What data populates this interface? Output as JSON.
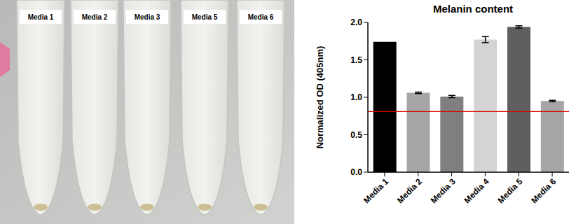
{
  "chart_data": {
    "type": "bar",
    "title": "Melanin content",
    "y_label": "Normalized OD (405nm)",
    "categories": [
      "Media 1",
      "Media 2",
      "Media 3",
      "Media 4",
      "Media 5",
      "Media 6"
    ],
    "values": [
      1.74,
      1.06,
      1.01,
      1.77,
      1.94,
      0.95
    ],
    "errors": [
      0,
      0.01,
      0.015,
      0.04,
      0.015,
      0.01
    ],
    "colors": [
      "#000000",
      "#a6a6a6",
      "#7f7f7f",
      "#d4d4d4",
      "#5f5f5f",
      "#a6a6a6"
    ],
    "ylim": [
      0,
      2
    ],
    "yticks": [
      {
        "value": 0,
        "label": "0.0"
      },
      {
        "value": 0.5,
        "label": "0.5"
      },
      {
        "value": 1,
        "label": "1.0"
      },
      {
        "value": 1.5,
        "label": "1.5"
      },
      {
        "value": 2,
        "label": "2.0"
      }
    ],
    "reference_line": 0.81,
    "grid": false
  },
  "photo": {
    "tube_labels": [
      "Media 1",
      "Media 2",
      "Media 3",
      "Media 5",
      "Media 6"
    ]
  }
}
